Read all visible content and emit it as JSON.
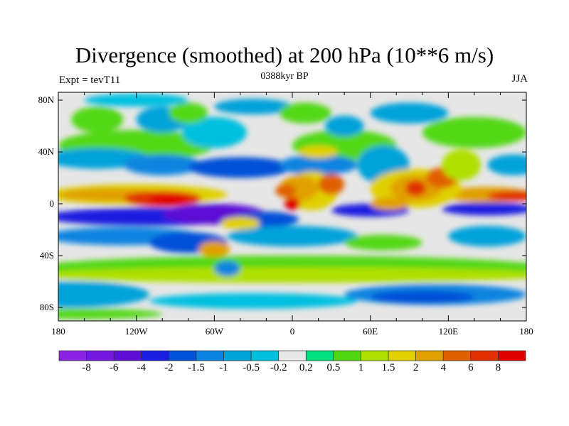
{
  "title": "Divergence (smoothed) at 200 hPa (10**6 m/s)",
  "left_string": "Expt = tevT11",
  "center_string": "0388kyr BP",
  "right_string": "JJA",
  "chart_data": {
    "type": "heatmap",
    "title": "Divergence (smoothed) at 200 hPa (10**6 m/s)",
    "projection": "cylindrical-equidistant",
    "lat_ticks": [
      "80N",
      "40N",
      "0",
      "40S",
      "80S"
    ],
    "lat_values": [
      80,
      40,
      0,
      -40,
      -80
    ],
    "lon_ticks": [
      "180",
      "120W",
      "60W",
      "0",
      "60E",
      "120E",
      "180"
    ],
    "lon_values": [
      -180,
      -120,
      -60,
      0,
      60,
      120,
      180
    ],
    "colorbar_labels": [
      "-8",
      "-6",
      "-4",
      "-2",
      "-1.5",
      "-1",
      "-0.5",
      "-0.2",
      "0.2",
      "0.5",
      "1",
      "1.5",
      "2",
      "4",
      "6",
      "8"
    ],
    "colorbar_colors": [
      "#8a22e2",
      "#7418e0",
      "#5c10d6",
      "#1a1ee0",
      "#0050d8",
      "#0a84e0",
      "#00a2da",
      "#00c0e0",
      "#e8e8e8",
      "#00e080",
      "#52d812",
      "#b0e000",
      "#e0d000",
      "#e0a000",
      "#e06000",
      "#e03000",
      "#e00000"
    ]
  }
}
